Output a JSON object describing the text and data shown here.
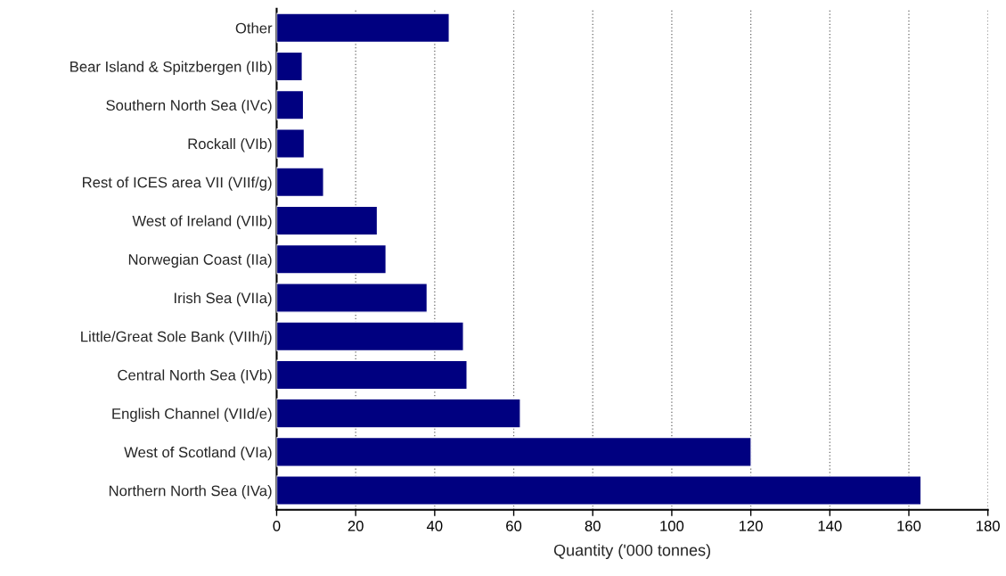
{
  "chart_data": {
    "type": "bar",
    "orientation": "horizontal",
    "xlabel": "Quantity ('000 tonnes)",
    "categories": [
      "Other",
      "Bear Island & Spitzbergen (IIb)",
      "Southern North Sea (IVc)",
      "Rockall (VIb)",
      "Rest of ICES area VII (VIIf/g)",
      "West of Ireland (VIIb)",
      "Norwegian Coast (IIa)",
      "Irish Sea (VIIa)",
      "Little/Great Sole Bank (VIIh/j)",
      "Central North Sea (IVb)",
      "English Channel (VIId/e)",
      "West of Scotland (VIa)",
      "Northern North Sea (IVa)"
    ],
    "values": [
      43.7,
      6.5,
      6.8,
      7.0,
      11.9,
      25.5,
      27.7,
      38.1,
      47.3,
      48.2,
      61.7,
      120.1,
      163.1
    ],
    "color": "#000080",
    "xlim": [
      0,
      180
    ],
    "xticks": [
      0,
      20,
      40,
      60,
      80,
      100,
      120,
      140,
      160,
      180
    ],
    "grid": "x",
    "legend": false
  }
}
